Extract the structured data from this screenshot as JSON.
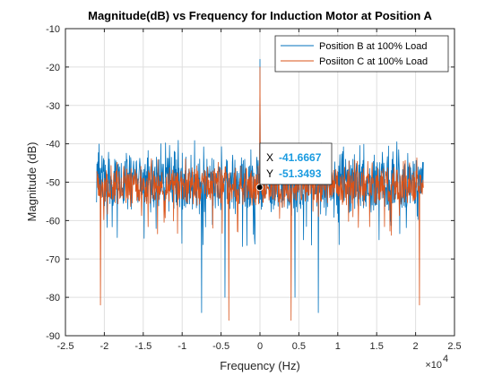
{
  "chart_data": {
    "type": "line",
    "title": "Magnitude(dB) vs Frequency for Induction Motor at Position A",
    "xlabel": "Frequency (Hz)",
    "ylabel": "Magnitude (dB)",
    "x_exponent_label": "×10",
    "x_exponent_power": "4",
    "xlim": [
      -2.5,
      2.5
    ],
    "ylim": [
      -90,
      -10
    ],
    "x_scale": 10000,
    "xticks": [
      -2.5,
      -2,
      -1.5,
      -1,
      -0.5,
      0,
      0.5,
      1,
      1.5,
      2,
      2.5
    ],
    "xtick_labels": [
      "-2.5",
      "-2",
      "-1.5",
      "-1",
      "-0.5",
      "0",
      "0.5",
      "1",
      "1.5",
      "2",
      "2.5"
    ],
    "yticks": [
      -10,
      -20,
      -30,
      -40,
      -50,
      -60,
      -70,
      -80,
      -90
    ],
    "ytick_labels": [
      "-10",
      "-20",
      "-30",
      "-40",
      "-50",
      "-60",
      "-70",
      "-80",
      "-90"
    ],
    "grid": true,
    "legend_position": "top-right",
    "series": [
      {
        "name": "Position B at 100% Load",
        "color": "#0072bd",
        "x_range": [
          -2.1,
          2.1
        ],
        "baseline": -50,
        "noise_band": [
          -59,
          -41
        ],
        "peaks": [
          {
            "x": 0,
            "y": -18
          }
        ],
        "dips": [
          {
            "x": -0.75,
            "y": -84
          },
          {
            "x": 0.75,
            "y": -84
          },
          {
            "x": -0.45,
            "y": -80
          },
          {
            "x": 0.45,
            "y": -80
          }
        ]
      },
      {
        "name": "Posiiton C at 100% Load",
        "color": "#d95319",
        "x_range": [
          -2.1,
          2.1
        ],
        "baseline": -51,
        "noise_band": [
          -56,
          -45
        ],
        "peaks": [
          {
            "x": 0,
            "y": -20
          }
        ],
        "dips": [
          {
            "x": -2.05,
            "y": -82
          },
          {
            "x": 2.05,
            "y": -82
          },
          {
            "x": -0.4,
            "y": -86
          },
          {
            "x": 0.4,
            "y": -86
          }
        ]
      }
    ],
    "datatip": {
      "x_label": "X",
      "y_label": "Y",
      "x_value": "-41.6667",
      "y_value": "-51.3493",
      "x": -0.00416667,
      "y": -51.3493
    }
  }
}
